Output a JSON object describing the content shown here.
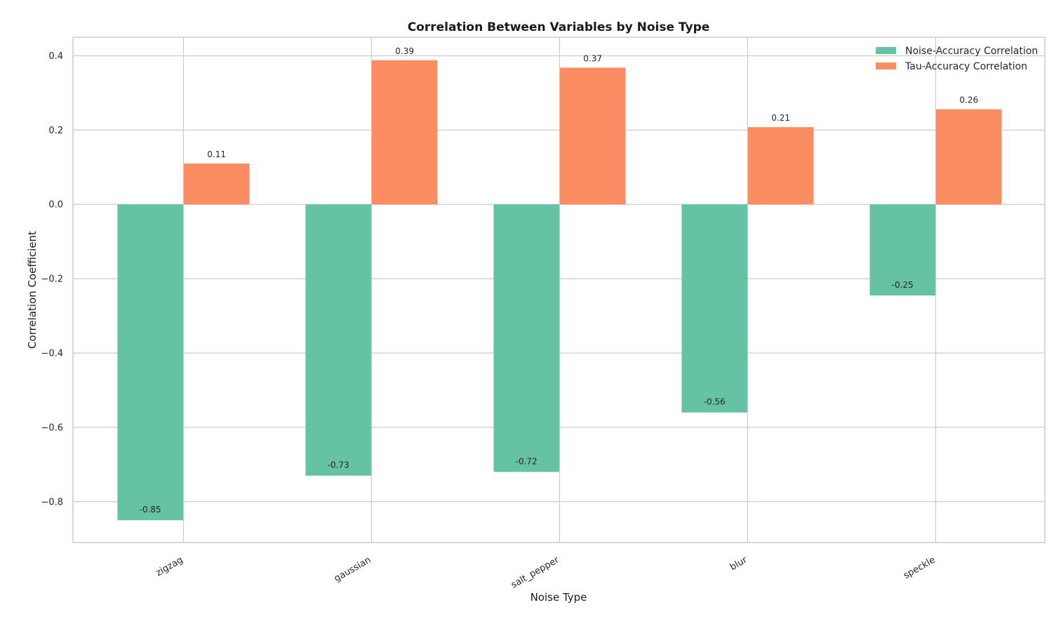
{
  "chart_data": {
    "type": "bar",
    "title": "Correlation Between Variables by Noise Type",
    "xlabel": "Noise Type",
    "ylabel": "Correlation Coefficient",
    "categories": [
      "zigzag",
      "gaussian",
      "salt_pepper",
      "blur",
      "speckle"
    ],
    "series": [
      {
        "name": "Noise-Accuracy Correlation",
        "color": "#66c2a5",
        "values": [
          -0.85,
          -0.73,
          -0.72,
          -0.56,
          -0.245
        ],
        "labels": [
          "-0.85",
          "-0.73",
          "-0.72",
          "-0.56",
          "-0.25"
        ]
      },
      {
        "name": "Tau-Accuracy Correlation",
        "color": "#fc8d62",
        "values": [
          0.11,
          0.388,
          0.368,
          0.208,
          0.256
        ],
        "labels": [
          "0.11",
          "0.39",
          "0.37",
          "0.21",
          "0.26"
        ]
      }
    ],
    "ylim": [
      -0.91,
      0.45
    ],
    "yticks": [
      0.4,
      0.2,
      0.0,
      -0.2,
      -0.4,
      -0.6,
      -0.8
    ],
    "ytick_labels": [
      "0.4",
      "0.2",
      "0.0",
      "−0.2",
      "−0.4",
      "−0.6",
      "−0.8"
    ],
    "grid": true,
    "legend_position": "top-right"
  }
}
